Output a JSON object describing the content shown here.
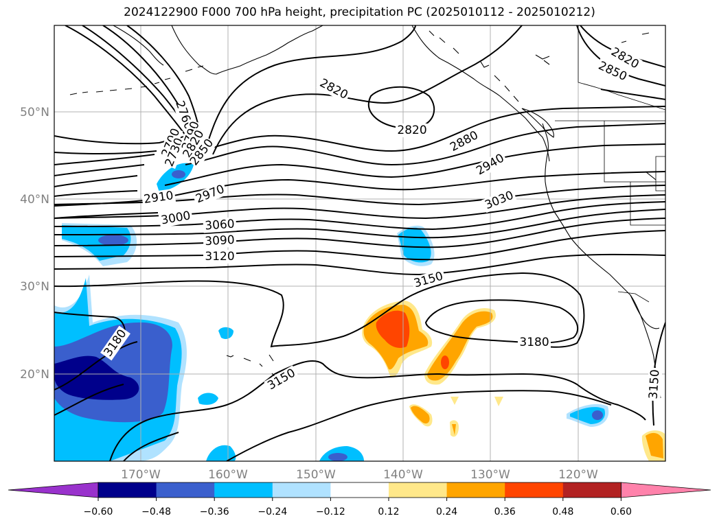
{
  "title": "2024122900 F000 700 hPa height, precipitation PC (2025010112 - 2025010212)",
  "lat_labels": [
    "50°N",
    "40°N",
    "30°N",
    "20°N"
  ],
  "lon_labels": [
    "170°W",
    "160°W",
    "150°W",
    "140°W",
    "130°W",
    "120°W"
  ],
  "colorbar": {
    "ticks": [
      "−0.60",
      "−0.48",
      "−0.36",
      "−0.24",
      "−0.12",
      "0.12",
      "0.24",
      "0.36",
      "0.48",
      "0.60"
    ],
    "colors": [
      "#9932cc",
      "#00008b",
      "#3a5fcd",
      "#00bfff",
      "#b0e2ff",
      "#ffffff",
      "#ffe88a",
      "#ffa500",
      "#ff4500",
      "#b22222",
      "#ff82ab"
    ]
  },
  "contour_labels": [
    "2700",
    "2730",
    "2760",
    "2790",
    "2820",
    "2850",
    "2820",
    "2820",
    "2820",
    "2850",
    "2880",
    "2940",
    "2910",
    "2970",
    "3000",
    "3030",
    "3060",
    "3090",
    "3120",
    "3150",
    "3180",
    "3180",
    "3150",
    "3150"
  ],
  "colors": {
    "contour": "#000000",
    "grid": "#b0b0b0",
    "axis_labels": "#808080"
  }
}
